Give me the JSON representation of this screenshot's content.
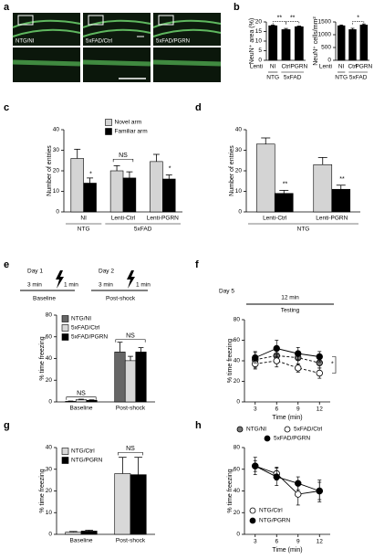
{
  "figure": {
    "panel_labels": [
      "a",
      "b",
      "c",
      "d",
      "e",
      "f",
      "g",
      "h"
    ],
    "image_labels": [
      "NTG/NI",
      "5xFAD/Ctrl",
      "5xFAD/PGRN"
    ],
    "protocol_e": [
      "Day 1",
      "3 min",
      "1 min",
      "Baseline",
      "Day 2",
      "3 min",
      "1 min",
      "Post-shock"
    ],
    "protocol_f": [
      "Day 5",
      "12 min",
      "Testing"
    ]
  },
  "chart_data": [
    {
      "type": "bar",
      "ylabel": "NeuN⁺ area (%)",
      "categories": [
        "NI",
        "Ctrl",
        "PGRN"
      ],
      "row_label": "Lenti",
      "group_labels": [
        "NTG",
        "5xFAD"
      ],
      "series": [
        {
          "color": "#000000",
          "values": [
            18,
            16,
            17.5
          ],
          "errors": [
            0.4,
            0.6,
            0.4
          ]
        }
      ],
      "ylim": [
        0,
        20
      ],
      "yticks": [
        0,
        5,
        10,
        15,
        20
      ],
      "annotations": [
        "**",
        "**"
      ]
    },
    {
      "type": "bar",
      "ylabel": "NeuN⁺ cells/mm²",
      "categories": [
        "NI",
        "Ctrl",
        "PGRN"
      ],
      "row_label": "Lenti",
      "group_labels": [
        "NTG",
        "5xFAD"
      ],
      "series": [
        {
          "color": "#000000",
          "values": [
            1350,
            1200,
            1380
          ],
          "errors": [
            30,
            50,
            40
          ]
        }
      ],
      "ylim": [
        0,
        1500
      ],
      "yticks": [
        0,
        500,
        1000,
        1500
      ],
      "annotations": [
        "*"
      ]
    },
    {
      "type": "bar",
      "ylabel": "Number of entries",
      "categories": [
        "NI",
        "Lenti-Ctrl",
        "Lenti-PGRN"
      ],
      "group_labels": [
        "NTG",
        "5xFAD"
      ],
      "legend": "top",
      "series": [
        {
          "name": "Novel arm",
          "color": "#d4d4d4",
          "values": [
            26,
            20,
            24.5
          ],
          "errors": [
            4.5,
            2.5,
            3.5
          ]
        },
        {
          "name": "Familiar arm",
          "color": "#000000",
          "values": [
            14,
            16.5,
            16
          ],
          "errors": [
            2.5,
            3,
            2
          ]
        }
      ],
      "ylim": [
        0,
        40
      ],
      "yticks": [
        0,
        10,
        20,
        30,
        40
      ],
      "annotations": [
        "*",
        "NS",
        "*"
      ]
    },
    {
      "type": "bar",
      "ylabel": "Number of entries",
      "categories": [
        "Lenti-Ctrl",
        "Lenti-PGRN"
      ],
      "group_labels": [
        "NTG"
      ],
      "series": [
        {
          "color": "#d4d4d4",
          "values": [
            33,
            23
          ],
          "errors": [
            3,
            3.5
          ]
        },
        {
          "color": "#000000",
          "values": [
            9,
            11
          ],
          "errors": [
            1.5,
            2
          ]
        }
      ],
      "ylim": [
        0,
        40
      ],
      "yticks": [
        0,
        10,
        20,
        30,
        40
      ],
      "annotations": [
        "**",
        "**"
      ]
    },
    {
      "type": "bar",
      "ylabel": "% time freezing",
      "categories": [
        "Baseline",
        "Post-shock"
      ],
      "legend": "top-left",
      "series": [
        {
          "name": "NTG/NI",
          "color": "#666666",
          "values": [
            0.5,
            46
          ],
          "errors": [
            0.3,
            9
          ]
        },
        {
          "name": "5xFAD/Ctrl",
          "color": "#d8d8d8",
          "values": [
            2,
            38
          ],
          "errors": [
            0.5,
            4
          ]
        },
        {
          "name": "5xFAD/PGRN",
          "color": "#000000",
          "values": [
            1.5,
            46
          ],
          "errors": [
            0.4,
            4
          ]
        }
      ],
      "ylim": [
        0,
        80
      ],
      "yticks": [
        0,
        20,
        40,
        60,
        80
      ],
      "annotations": [
        "NS",
        "NS"
      ]
    },
    {
      "type": "line",
      "ylabel": "% time freezing",
      "xlabel": "Time (min)",
      "x": [
        3,
        6,
        9,
        12
      ],
      "xlim": [
        1.5,
        13.5
      ],
      "xticks": [
        3,
        6,
        9,
        12
      ],
      "legend": "bottom",
      "series": [
        {
          "name": "NTG/NI",
          "color": "#777777",
          "line_style": "dashed",
          "values": [
            41,
            45,
            43,
            38
          ],
          "errors": [
            8,
            7,
            6,
            5
          ]
        },
        {
          "name": "5xFAD/Ctrl",
          "color": "#ffffff",
          "line_style": "dashed",
          "values": [
            37,
            40,
            33,
            28
          ],
          "errors": [
            5,
            6,
            4,
            5
          ]
        },
        {
          "name": "5xFAD/PGRN",
          "color": "#000000",
          "line_style": "solid",
          "values": [
            43,
            52,
            47,
            44
          ],
          "errors": [
            5,
            8,
            6,
            5
          ]
        }
      ],
      "ylim": [
        0,
        80
      ],
      "yticks": [
        0,
        20,
        40,
        60,
        80
      ],
      "annotations": [
        "*"
      ]
    },
    {
      "type": "bar",
      "ylabel": "% time freezing",
      "categories": [
        "Baseline",
        "Post-shock"
      ],
      "legend": "top-left",
      "series": [
        {
          "name": "NTG/Ctrl",
          "color": "#d8d8d8",
          "values": [
            1,
            28
          ],
          "errors": [
            0.3,
            7.5
          ]
        },
        {
          "name": "NTG/PGRN",
          "color": "#000000",
          "values": [
            1.5,
            27.5
          ],
          "errors": [
            0.4,
            8
          ]
        }
      ],
      "ylim": [
        0,
        40
      ],
      "yticks": [
        0,
        10,
        20,
        30,
        40
      ],
      "annotations": [
        "NS"
      ]
    },
    {
      "type": "line",
      "ylabel": "% time freezing",
      "xlabel": "Time (min)",
      "x": [
        3,
        6,
        9,
        12
      ],
      "xlim": [
        1.5,
        13.5
      ],
      "xticks": [
        3,
        6,
        9,
        12
      ],
      "legend": "bottom-left",
      "series": [
        {
          "name": "NTG/Ctrl",
          "color": "#ffffff",
          "line_style": "solid",
          "values": [
            63,
            56,
            37,
            40
          ],
          "errors": [
            5,
            6,
            10,
            10
          ]
        },
        {
          "name": "NTG/PGRN",
          "color": "#000000",
          "line_style": "solid",
          "values": [
            63,
            53,
            47,
            40
          ],
          "errors": [
            8,
            8,
            6,
            8
          ]
        }
      ],
      "ylim": [
        0,
        80
      ],
      "yticks": [
        0,
        20,
        40,
        60,
        80
      ]
    }
  ]
}
